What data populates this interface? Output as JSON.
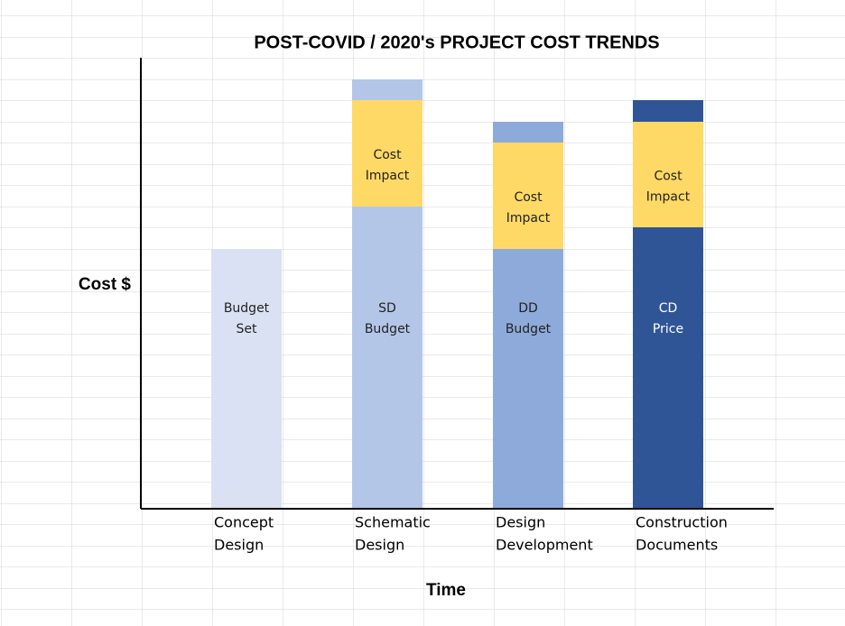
{
  "chart_data": {
    "type": "stacked_bar",
    "title": "POST-COVID / 2020's PROJECT COST TRENDS",
    "y_label": "Cost $",
    "x_label": "Time",
    "categories": [
      [
        "Concept",
        "Design"
      ],
      [
        "Schematic",
        "Design"
      ],
      [
        "Design",
        "Development"
      ],
      [
        "Construction",
        "Documents"
      ]
    ],
    "ylim": [
      0,
      500
    ],
    "series": [
      {
        "colors": [
          "#d9e1f2",
          "#b4c6e7",
          "#8eaadb",
          "#2f5597"
        ],
        "values": [
          288,
          335,
          288,
          312
        ],
        "labels": [
          [
            "Budget",
            "Set"
          ],
          [
            "SD",
            "Budget"
          ],
          [
            "DD",
            "Budget"
          ],
          [
            "CD",
            "Price"
          ]
        ]
      },
      {
        "colors": [
          "#ffd966",
          "#ffd966",
          "#ffd966",
          "#ffd966"
        ],
        "values": [
          0,
          118,
          118,
          117
        ],
        "labels": [
          null,
          [
            "Cost",
            "Impact"
          ],
          [
            "Cost",
            "Impact"
          ],
          [
            "Cost",
            "Impact"
          ]
        ]
      },
      {
        "colors": [
          "#b4c6e7",
          "#b4c6e7",
          "#8eaadb",
          "#2f5597"
        ],
        "values": [
          0,
          23,
          23,
          24
        ]
      }
    ]
  }
}
